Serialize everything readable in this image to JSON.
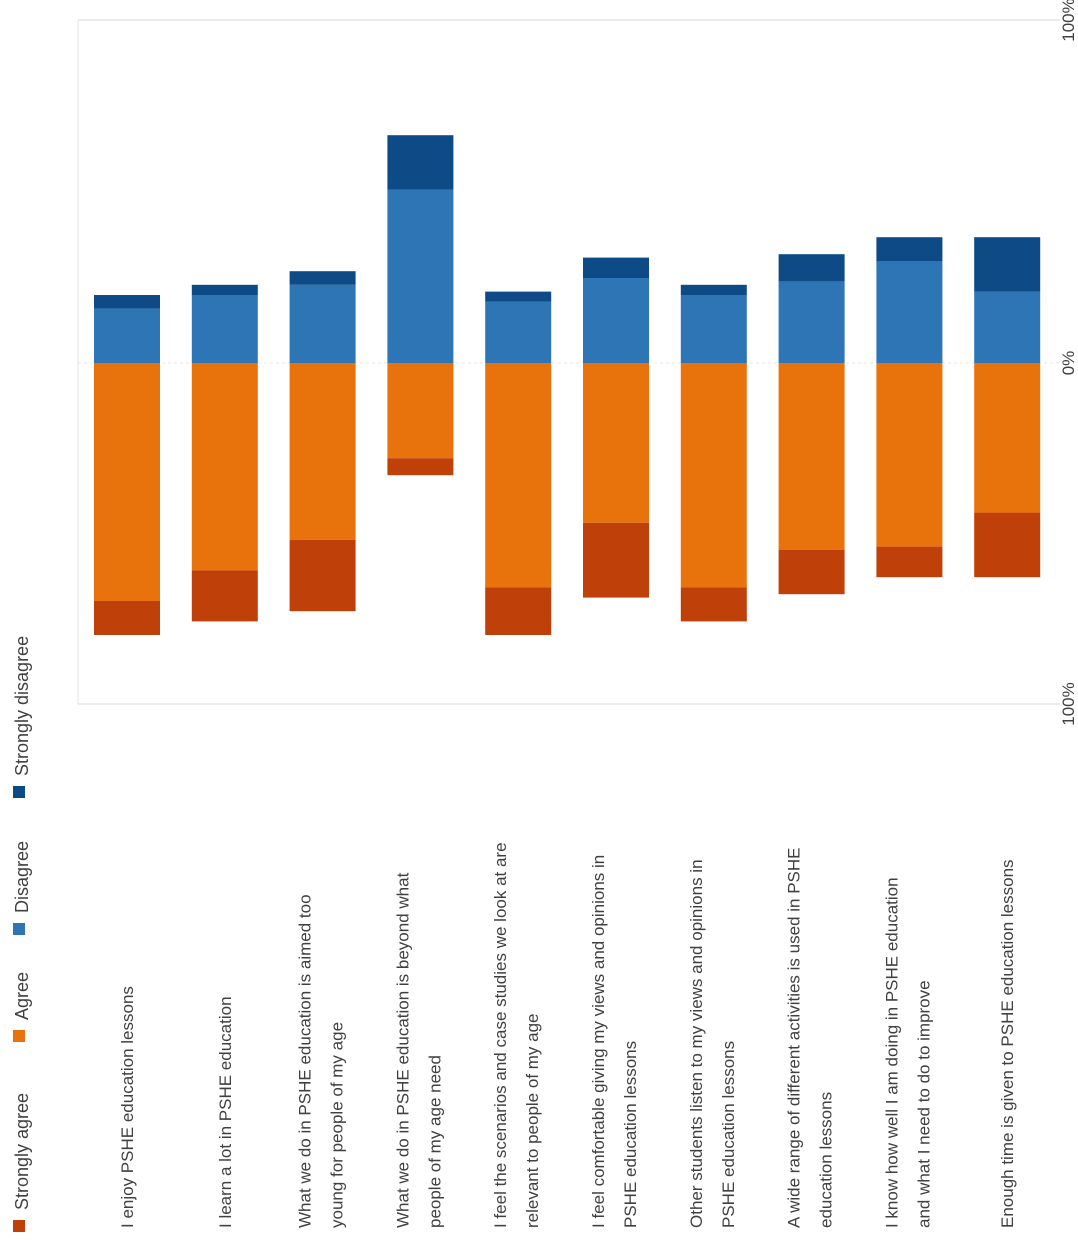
{
  "chart_data": {
    "type": "bar",
    "stacked": true,
    "diverging": true,
    "orientation": "rotated-90-clockwise",
    "categories": [
      "I enjoy PSHE education lessons",
      "I learn a lot in PSHE education",
      "What we do in PSHE education is aimed too young for people of my age",
      "What we do in PSHE education is beyond what people of my age need",
      "I feel the scenarios and case studies we look at are relevant to people of my age",
      "I feel comfortable giving my views and opinions in PSHE education lessons",
      "Other students listen to my views and opinions in PSHE education lessons",
      "A wide range of different activities is used in PSHE education lessons",
      "I know how well I am doing in PSHE education and what I need to do to improve",
      "Enough time is given to PSHE education lessons"
    ],
    "category_lines": [
      [
        "I enjoy PSHE education lessons"
      ],
      [
        "I learn a lot in PSHE education"
      ],
      [
        "What we do in PSHE education is aimed too",
        "young for people of my age"
      ],
      [
        "What we do in PSHE education is beyond what",
        "people of my age need"
      ],
      [
        "I feel the scenarios and case studies we look at are",
        "relevant to people of my age"
      ],
      [
        "I feel comfortable giving my views and opinions in",
        "PSHE education lessons"
      ],
      [
        "Other students listen to my views and opinions in",
        "PSHE education lessons"
      ],
      [
        "A wide range of different activities is used in PSHE",
        "education lessons"
      ],
      [
        "I know how well I am doing in PSHE education",
        "and what I need to do to improve"
      ],
      [
        "Enough time is given to PSHE education lessons"
      ]
    ],
    "series": [
      {
        "name": "Strongly agree",
        "color": "#c0400a",
        "side": "agree",
        "values": [
          10,
          15,
          21,
          5,
          14,
          22,
          10,
          13,
          9,
          19
        ]
      },
      {
        "name": "Agree",
        "color": "#e8730c",
        "side": "agree",
        "values": [
          70,
          61,
          52,
          28,
          66,
          47,
          66,
          55,
          54,
          44
        ]
      },
      {
        "name": "Disagree",
        "color": "#2e75b6",
        "side": "disagree",
        "values": [
          16,
          20,
          23,
          51,
          18,
          25,
          20,
          24,
          30,
          21
        ]
      },
      {
        "name": "Strongly disagree",
        "color": "#0d4a86",
        "side": "disagree",
        "values": [
          4,
          3,
          4,
          16,
          3,
          6,
          3,
          8,
          7,
          16
        ]
      }
    ],
    "axis_ticks": [
      "100%",
      "0%",
      "100%"
    ],
    "range": [
      -100,
      100
    ],
    "legend_position": "top",
    "grid": false
  }
}
